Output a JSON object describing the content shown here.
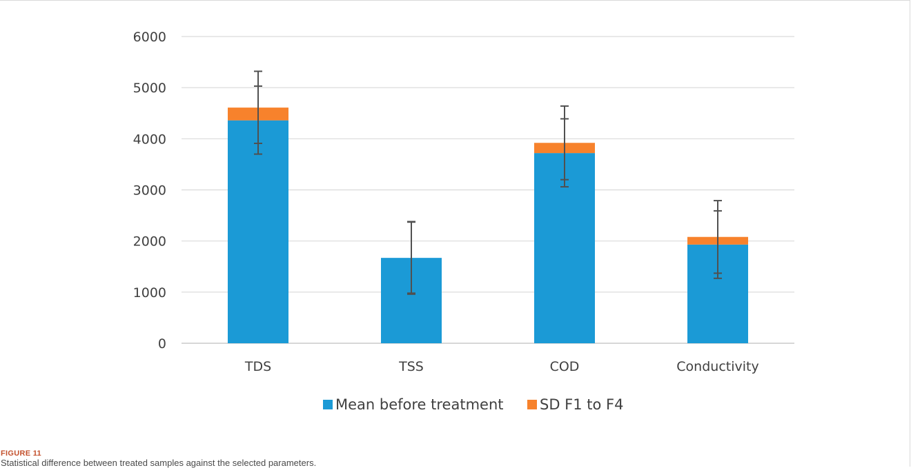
{
  "figure": {
    "label": "FIGURE 11",
    "caption": "Statistical difference between treated samples against the selected parameters."
  },
  "colors": {
    "mean": "#1b9ad6",
    "sd": "#f7822c",
    "errorbar": "#505050",
    "grid": "#d9d9d9",
    "axis": "#bfbfbf"
  },
  "chart_data": {
    "type": "bar",
    "stacked": true,
    "categories": [
      "TDS",
      "TSS",
      "COD",
      "Conductivity"
    ],
    "series": [
      {
        "name": "Mean before treatment",
        "values": [
          4360,
          1670,
          3720,
          1930
        ]
      },
      {
        "name": "SD F1 to F4",
        "values": [
          250,
          0,
          200,
          150
        ]
      }
    ],
    "error_bars": [
      {
        "series": "Mean before treatment",
        "low": [
          3910,
          980,
          3200,
          1370
        ],
        "high": [
          5030,
          2370,
          4390,
          2590
        ]
      },
      {
        "series": "SD F1 to F4",
        "low": [
          3700,
          960,
          3060,
          1270
        ],
        "high": [
          5320,
          2380,
          4640,
          2790
        ]
      }
    ],
    "ylim": [
      0,
      6000
    ],
    "yticks": [
      "0",
      "1000",
      "2000",
      "3000",
      "4000",
      "5000",
      "6000"
    ],
    "grid": true,
    "legend": "bottom",
    "xlabel": "",
    "ylabel": ""
  }
}
